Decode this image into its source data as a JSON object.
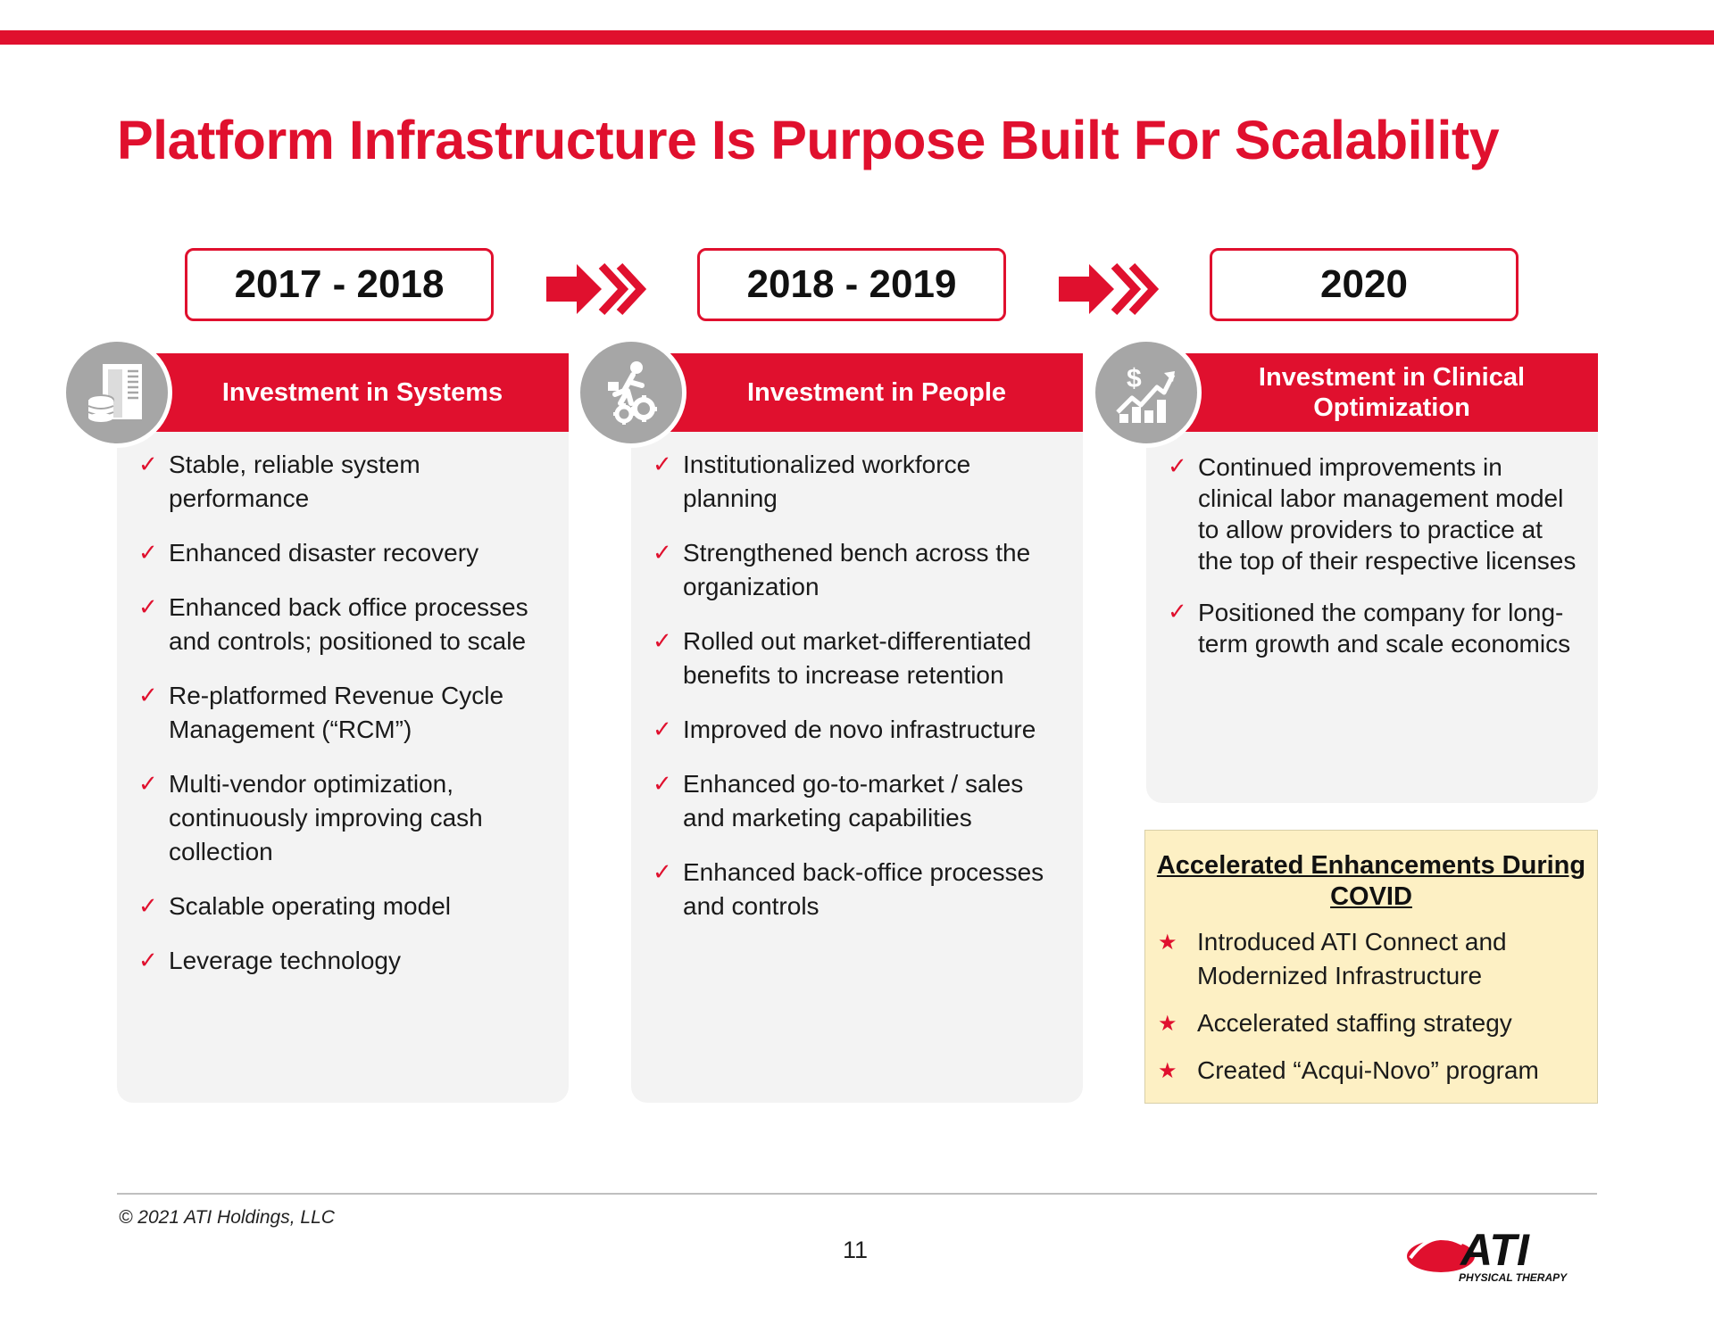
{
  "title": "Platform Infrastructure Is Purpose Built For Scalability",
  "colors": {
    "accent": "#e0102e",
    "panel_bg": "#f3f3f3",
    "icon_bg": "#a6a6a6",
    "covid_bg": "#fdf0c4"
  },
  "timeline": [
    {
      "period": "2017 - 2018",
      "header": "Investment in Systems",
      "icon": "building-database-icon",
      "bullets": [
        "Stable, reliable system performance",
        "Enhanced disaster recovery",
        "Enhanced back office processes and controls; positioned to scale",
        "Re-platformed Revenue Cycle Management (“RCM”)",
        "Multi-vendor optimization, continuously improving cash collection",
        "Scalable operating model",
        "Leverage technology"
      ]
    },
    {
      "period": "2018 - 2019",
      "header": "Investment in People",
      "icon": "person-gears-icon",
      "bullets": [
        "Institutionalized workforce planning",
        "Strengthened bench across the organization",
        "Rolled out market-differentiated benefits to increase retention",
        "Improved de novo infrastructure",
        "Enhanced go-to-market / sales and marketing capabilities",
        "Enhanced back-office processes and controls"
      ]
    },
    {
      "period": "2020",
      "header": "Investment in Clinical Optimization",
      "icon": "dollar-growth-chart-icon",
      "bullets": [
        "Continued improvements in clinical labor management model to allow providers to practice at the top of their respective licenses",
        "Positioned the company for long-term growth and scale economics"
      ]
    }
  ],
  "covid": {
    "title": "Accelerated Enhancements During COVID",
    "items": [
      "Introduced ATI Connect and Modernized Infrastructure",
      "Accelerated staffing strategy",
      "Created “Acqui-Novo” program"
    ]
  },
  "footer": {
    "copyright": "© 2021 ATI Holdings, LLC",
    "page_number": "11",
    "logo_text": "ATI",
    "logo_subtext": "PHYSICAL THERAPY"
  }
}
